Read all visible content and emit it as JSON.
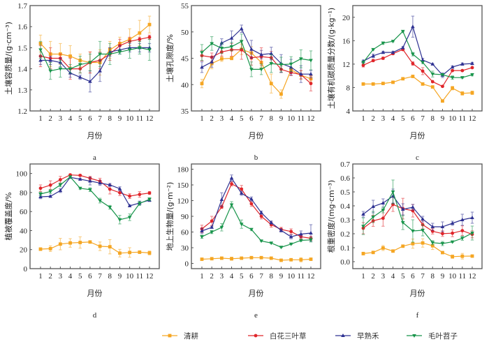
{
  "legend": [
    {
      "name": "清耕",
      "color": "#F5A623",
      "marker": "square"
    },
    {
      "name": "白花三叶草",
      "color": "#E0262B",
      "marker": "circle"
    },
    {
      "name": "早熟禾",
      "color": "#2E3192",
      "marker": "triangle-up"
    },
    {
      "name": "毛叶苕子",
      "color": "#17944A",
      "marker": "triangle-down"
    }
  ],
  "chart_data": [
    {
      "id": "a",
      "type": "line",
      "panel_label": "a",
      "xlabel": "月份",
      "ylabel": "土壤容质量/(g·cm⁻³)",
      "x": [
        1,
        2,
        3,
        4,
        5,
        6,
        7,
        8,
        9,
        10,
        11,
        12
      ],
      "ylim": [
        1.2,
        1.7
      ],
      "yticks": [
        1.2,
        1.3,
        1.4,
        1.5,
        1.6,
        1.7
      ],
      "ytick_decimals": 1,
      "series": [
        {
          "name": "清耕",
          "values": [
            1.52,
            1.47,
            1.47,
            1.46,
            1.44,
            1.43,
            1.43,
            1.49,
            1.52,
            1.54,
            1.57,
            1.61
          ],
          "errors": [
            0.04,
            0.06,
            0.05,
            0.05,
            0.03,
            0.05,
            0.06,
            0.04,
            0.03,
            0.05,
            0.06,
            0.04
          ]
        },
        {
          "name": "白花三叶草",
          "values": [
            1.46,
            1.45,
            1.45,
            1.4,
            1.4,
            1.43,
            1.44,
            1.47,
            1.51,
            1.53,
            1.54,
            1.55
          ],
          "errors": [
            0.05,
            0.05,
            0.02,
            0.05,
            0.02,
            0.05,
            0.04,
            0.03,
            0.03,
            0.02,
            0.01,
            0.01
          ]
        },
        {
          "name": "早熟禾",
          "values": [
            1.44,
            1.44,
            1.43,
            1.38,
            1.36,
            1.34,
            1.39,
            1.48,
            1.49,
            1.5,
            1.5,
            1.5
          ],
          "errors": [
            0.02,
            0.02,
            0.02,
            0.02,
            0.01,
            0.05,
            0.05,
            0.02,
            0.02,
            0.02,
            0.02,
            0.02
          ]
        },
        {
          "name": "毛叶苕子",
          "values": [
            1.49,
            1.39,
            1.4,
            1.4,
            1.42,
            1.43,
            1.47,
            1.47,
            1.48,
            1.49,
            1.5,
            1.49
          ],
          "errors": [
            0.04,
            0.04,
            0.04,
            0.02,
            0.04,
            0.04,
            0.06,
            0.05,
            0.01,
            0.04,
            0.03,
            0.05
          ]
        }
      ]
    },
    {
      "id": "b",
      "type": "line",
      "panel_label": "b",
      "xlabel": "月份",
      "ylabel": "土壤孔隙度/%",
      "x": [
        1,
        2,
        3,
        4,
        5,
        6,
        7,
        8,
        9,
        10,
        11,
        12
      ],
      "ylim": [
        35,
        55
      ],
      "yticks": [
        35,
        40,
        45,
        50,
        55
      ],
      "ytick_decimals": 0,
      "series": [
        {
          "name": "清耕",
          "values": [
            40.2,
            44.0,
            44.9,
            45.0,
            46.7,
            46.0,
            44.2,
            40.2,
            38.2,
            42.8,
            41.8,
            41.1
          ],
          "errors": [
            0.8,
            1.0,
            0.5,
            0.3,
            1.0,
            1.2,
            1.0,
            1.8,
            0.8,
            0.5,
            0.8,
            0.6
          ]
        },
        {
          "name": "白花三叶草",
          "values": [
            45.5,
            45.2,
            46.2,
            46.6,
            46.6,
            45.1,
            45.3,
            45.1,
            42.9,
            42.3,
            41.9,
            40.2
          ],
          "errors": [
            1.0,
            0.8,
            0.8,
            1.2,
            1.8,
            1.4,
            1.7,
            1.2,
            0.6,
            0.6,
            0.8,
            1.4
          ]
        },
        {
          "name": "早熟禾",
          "values": [
            43.3,
            44.3,
            47.9,
            48.8,
            50.6,
            46.7,
            45.7,
            45.9,
            44.0,
            43.3,
            42.0,
            42.0
          ],
          "errors": [
            1.0,
            1.0,
            0.8,
            1.4,
            0.7,
            1.7,
            0.8,
            1.2,
            1.7,
            1.5,
            1.6,
            0.7
          ]
        },
        {
          "name": "毛叶苕子",
          "values": [
            46.1,
            47.8,
            46.9,
            47.2,
            48.2,
            42.9,
            42.9,
            44.0,
            43.8,
            43.9,
            44.9,
            44.6
          ],
          "errors": [
            1.5,
            1.3,
            1.0,
            0.8,
            1.4,
            1.4,
            1.0,
            1.7,
            1.4,
            1.4,
            1.7,
            1.8
          ]
        }
      ]
    },
    {
      "id": "c",
      "type": "line",
      "panel_label": "c",
      "xlabel": "月份",
      "ylabel": "土壤有机碳质量分数/(g·kg⁻¹)",
      "x": [
        1,
        2,
        3,
        4,
        5,
        6,
        7,
        8,
        9,
        10,
        11,
        12
      ],
      "ylim": [
        4,
        22
      ],
      "yticks": [
        4,
        8,
        12,
        16,
        20
      ],
      "ytick_decimals": 0,
      "series": [
        {
          "name": "清耕",
          "values": [
            8.6,
            8.6,
            8.7,
            8.9,
            9.5,
            9.9,
            8.6,
            8.1,
            5.7,
            7.9,
            7.0,
            7.1
          ],
          "errors": [
            0.1,
            0.1,
            0.1,
            0.1,
            0.1,
            0.1,
            0.1,
            0.1,
            0.2,
            0.3,
            0.3,
            0.3
          ]
        },
        {
          "name": "白花三叶草",
          "values": [
            11.8,
            12.6,
            13.0,
            13.8,
            14.5,
            12.1,
            10.8,
            9.0,
            8.2,
            10.9,
            10.9,
            11.4
          ],
          "errors": [
            0.3,
            0.2,
            0.2,
            0.2,
            0.2,
            0.3,
            0.6,
            0.1,
            0.1,
            0.1,
            0.1,
            0.1
          ]
        },
        {
          "name": "早熟禾",
          "values": [
            12.5,
            13.4,
            14.0,
            14.0,
            14.8,
            18.4,
            12.7,
            12.0,
            10.1,
            11.5,
            12.0,
            12.1
          ],
          "errors": [
            0.2,
            0.3,
            0.2,
            0.2,
            0.2,
            1.8,
            0.3,
            0.1,
            0.4,
            0.2,
            0.2,
            0.2
          ]
        },
        {
          "name": "毛叶苕子",
          "values": [
            12.3,
            14.5,
            15.6,
            15.9,
            17.6,
            13.7,
            12.3,
            10.3,
            10.2,
            9.7,
            9.7,
            10.2
          ],
          "errors": [
            0.2,
            0.1,
            0.2,
            0.1,
            0.1,
            0.3,
            0.2,
            0.5,
            0.1,
            0.3,
            0.1,
            0.2
          ]
        }
      ]
    },
    {
      "id": "d",
      "type": "line",
      "panel_label": "d",
      "xlabel": "月份",
      "ylabel": "植被覆盖度/%",
      "x": [
        1,
        2,
        3,
        4,
        5,
        6,
        7,
        8,
        9,
        10,
        11,
        12
      ],
      "ylim": [
        0,
        110
      ],
      "yticks": [
        0,
        20,
        40,
        60,
        80,
        100
      ],
      "ytick_decimals": 0,
      "series": [
        {
          "name": "清耕",
          "values": [
            20.5,
            21.0,
            25.8,
            27.0,
            27.5,
            28.0,
            23.5,
            23.0,
            16.3,
            17.0,
            17.3,
            16.5
          ],
          "errors": [
            1.5,
            3.0,
            6.0,
            4.5,
            6.0,
            1.0,
            4.5,
            7.5,
            4.0,
            5.0,
            1.5,
            2.0
          ]
        },
        {
          "name": "白花三叶草",
          "values": [
            84.5,
            87.8,
            93.5,
            98.5,
            98.0,
            95.0,
            92.0,
            83.5,
            79.8,
            76.2,
            78.0,
            79.5
          ],
          "errors": [
            3.5,
            4.5,
            3.5,
            1.0,
            1.0,
            2.0,
            3.0,
            5.0,
            3.0,
            2.5,
            3.0,
            1.5
          ]
        },
        {
          "name": "早熟禾",
          "values": [
            75.5,
            76.0,
            82.0,
            96.0,
            94.0,
            92.0,
            90.0,
            88.0,
            84.0,
            66.0,
            69.0,
            72.0
          ],
          "errors": [
            2.0,
            1.0,
            2.0,
            1.0,
            1.0,
            4.0,
            2.5,
            1.5,
            2.0,
            1.0,
            2.0,
            1.5
          ]
        },
        {
          "name": "毛叶苕子",
          "values": [
            78.5,
            81.0,
            88.0,
            96.5,
            84.5,
            83.0,
            71.5,
            64.5,
            51.5,
            54.0,
            68.5,
            73.0
          ],
          "errors": [
            2.0,
            2.0,
            2.0,
            1.0,
            1.0,
            2.0,
            2.5,
            2.0,
            4.5,
            3.5,
            2.0,
            1.5
          ]
        }
      ]
    },
    {
      "id": "e",
      "type": "line",
      "panel_label": "e",
      "xlabel": "月份",
      "ylabel": "地上生物量/(g·m⁻²)",
      "x": [
        1,
        2,
        3,
        4,
        5,
        6,
        7,
        8,
        9,
        10,
        11,
        12
      ],
      "ylim": [
        -10,
        190
      ],
      "yticks": [
        0,
        30,
        60,
        90,
        120,
        150,
        180
      ],
      "ytick_decimals": 0,
      "series": [
        {
          "name": "清耕",
          "values": [
            8,
            9,
            10,
            9,
            10,
            11,
            11,
            10,
            6,
            7,
            7,
            8
          ],
          "errors": [
            2,
            1,
            2,
            3,
            2,
            1,
            2,
            2,
            1,
            2,
            4,
            2
          ]
        },
        {
          "name": "白花三叶草",
          "values": [
            66,
            81,
            108,
            152,
            142,
            114,
            90,
            74,
            65,
            61,
            51,
            48
          ],
          "errors": [
            7,
            9,
            3,
            4,
            7,
            5,
            5,
            5,
            4,
            5,
            4,
            4
          ]
        },
        {
          "name": "早熟禾",
          "values": [
            62,
            69,
            122,
            163,
            134,
            123,
            97,
            78,
            63,
            51,
            56,
            58
          ],
          "errors": [
            5,
            2,
            13,
            6,
            4,
            4,
            3,
            3,
            3,
            4,
            6,
            16
          ]
        },
        {
          "name": "毛叶苕子",
          "values": [
            51,
            60,
            69,
            112,
            75,
            65,
            43,
            39,
            31,
            37,
            44,
            45
          ],
          "errors": [
            3,
            3,
            7,
            6,
            8,
            2,
            1,
            1,
            1,
            1,
            2,
            4
          ]
        }
      ]
    },
    {
      "id": "f",
      "type": "line",
      "panel_label": "f",
      "xlabel": "月份",
      "ylabel": "根重密度/(mg·cm⁻³)",
      "x": [
        1,
        2,
        3,
        4,
        5,
        6,
        7,
        8,
        9,
        10,
        11,
        12
      ],
      "ylim": [
        -0.05,
        0.7
      ],
      "yticks": [
        0,
        0.1,
        0.2,
        0.3,
        0.4,
        0.5,
        0.6,
        0.7
      ],
      "ytick_decimals": 1,
      "series": [
        {
          "name": "清耕",
          "values": [
            0.058,
            0.066,
            0.098,
            0.076,
            0.111,
            0.129,
            0.134,
            0.114,
            0.065,
            0.036,
            0.039,
            0.04
          ],
          "errors": [
            0.01,
            0.005,
            0.018,
            0.005,
            0.005,
            0.033,
            0.03,
            0.027,
            0.005,
            0.012,
            0.02,
            0.005
          ]
        },
        {
          "name": "白花三叶草",
          "values": [
            0.24,
            0.293,
            0.311,
            0.41,
            0.38,
            0.365,
            0.265,
            0.218,
            0.201,
            0.204,
            0.222,
            0.196
          ],
          "errors": [
            0.04,
            0.04,
            0.057,
            0.05,
            0.074,
            0.045,
            0.03,
            0.02,
            0.02,
            0.025,
            0.035,
            0.025
          ]
        },
        {
          "name": "早熟禾",
          "values": [
            0.34,
            0.395,
            0.42,
            0.47,
            0.375,
            0.39,
            0.305,
            0.25,
            0.25,
            0.275,
            0.3,
            0.315
          ],
          "errors": [
            0.02,
            0.045,
            0.03,
            0.05,
            0.04,
            0.02,
            0.02,
            0.025,
            0.035,
            0.015,
            0.04,
            0.04
          ]
        },
        {
          "name": "毛叶苕子",
          "values": [
            0.254,
            0.32,
            0.37,
            0.5,
            0.28,
            0.22,
            0.225,
            0.136,
            0.13,
            0.142,
            0.168,
            0.205
          ],
          "errors": [
            0.06,
            0.04,
            0.02,
            0.085,
            0.05,
            0.08,
            0.04,
            0.015,
            0.015,
            0.005,
            0.015,
            0.05
          ]
        }
      ]
    }
  ]
}
